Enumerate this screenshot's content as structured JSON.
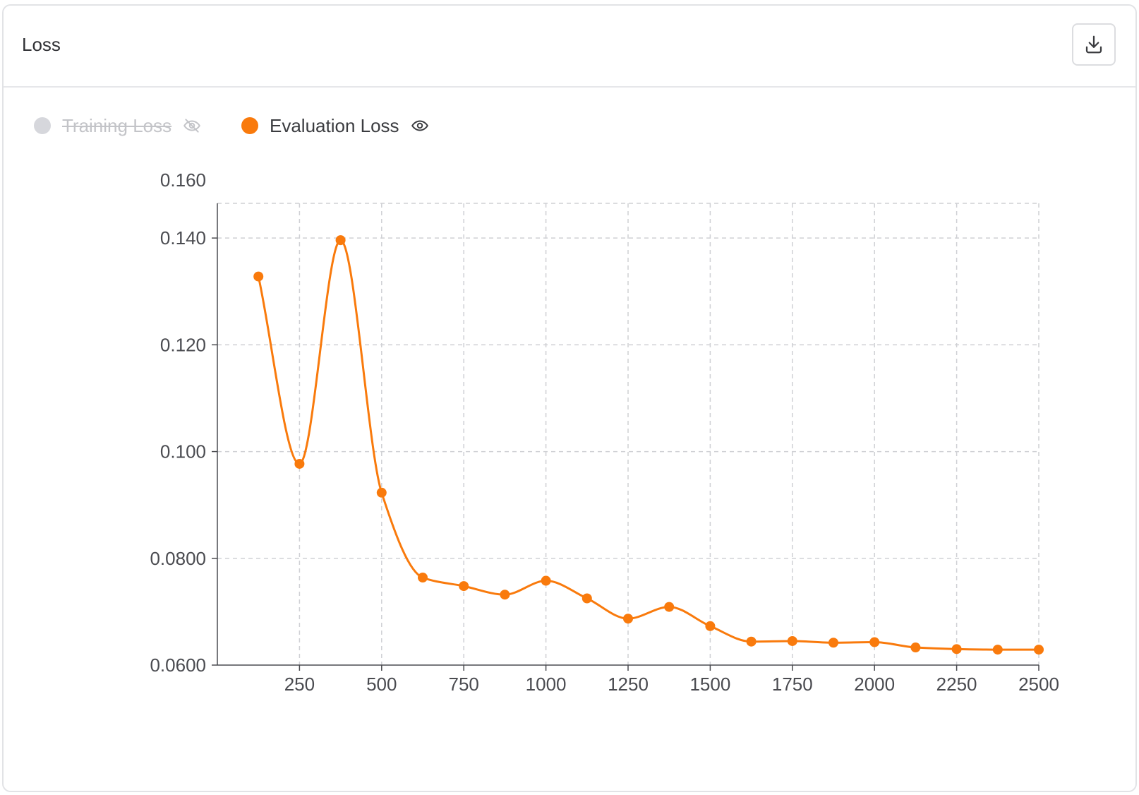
{
  "card": {
    "title": "Loss"
  },
  "toolbar": {
    "download_icon": "download-icon"
  },
  "legend": [
    {
      "label": "Training Loss",
      "state": "hidden",
      "color": "#d6d7dc",
      "toggle_icon": "eye-off-icon"
    },
    {
      "label": "Evaluation Loss",
      "state": "visible",
      "color": "#f97a0c",
      "toggle_icon": "eye-icon"
    }
  ],
  "chart_data": {
    "type": "line",
    "smooth": true,
    "x_ticks": [
      250,
      500,
      750,
      1000,
      1250,
      1500,
      1750,
      2000,
      2250,
      2500
    ],
    "y_ticks": [
      0.06,
      0.08,
      0.1,
      0.12,
      0.14,
      0.16
    ],
    "y_tick_labels": [
      "0.0600",
      "0.0800",
      "0.100",
      "0.120",
      "0.140",
      "0.160"
    ],
    "xlim": [
      0,
      2500
    ],
    "ylim": [
      0.06,
      0.1465
    ],
    "grid": true,
    "series": [
      {
        "name": "Training Loss",
        "hidden": true,
        "color": "#d6d7dc",
        "x": [],
        "y": []
      },
      {
        "name": "Evaluation Loss",
        "color": "#f97a0c",
        "x": [
          125,
          250,
          375,
          500,
          625,
          750,
          875,
          1000,
          1125,
          1250,
          1375,
          1500,
          1625,
          1750,
          1875,
          2000,
          2125,
          2250,
          2375,
          2500
        ],
        "y": [
          0.1328,
          0.0977,
          0.1396,
          0.0923,
          0.0764,
          0.0748,
          0.0732,
          0.0758,
          0.0725,
          0.0687,
          0.0709,
          0.0673,
          0.0644,
          0.0645,
          0.0642,
          0.0643,
          0.0633,
          0.063,
          0.0629,
          0.0629
        ]
      }
    ]
  }
}
